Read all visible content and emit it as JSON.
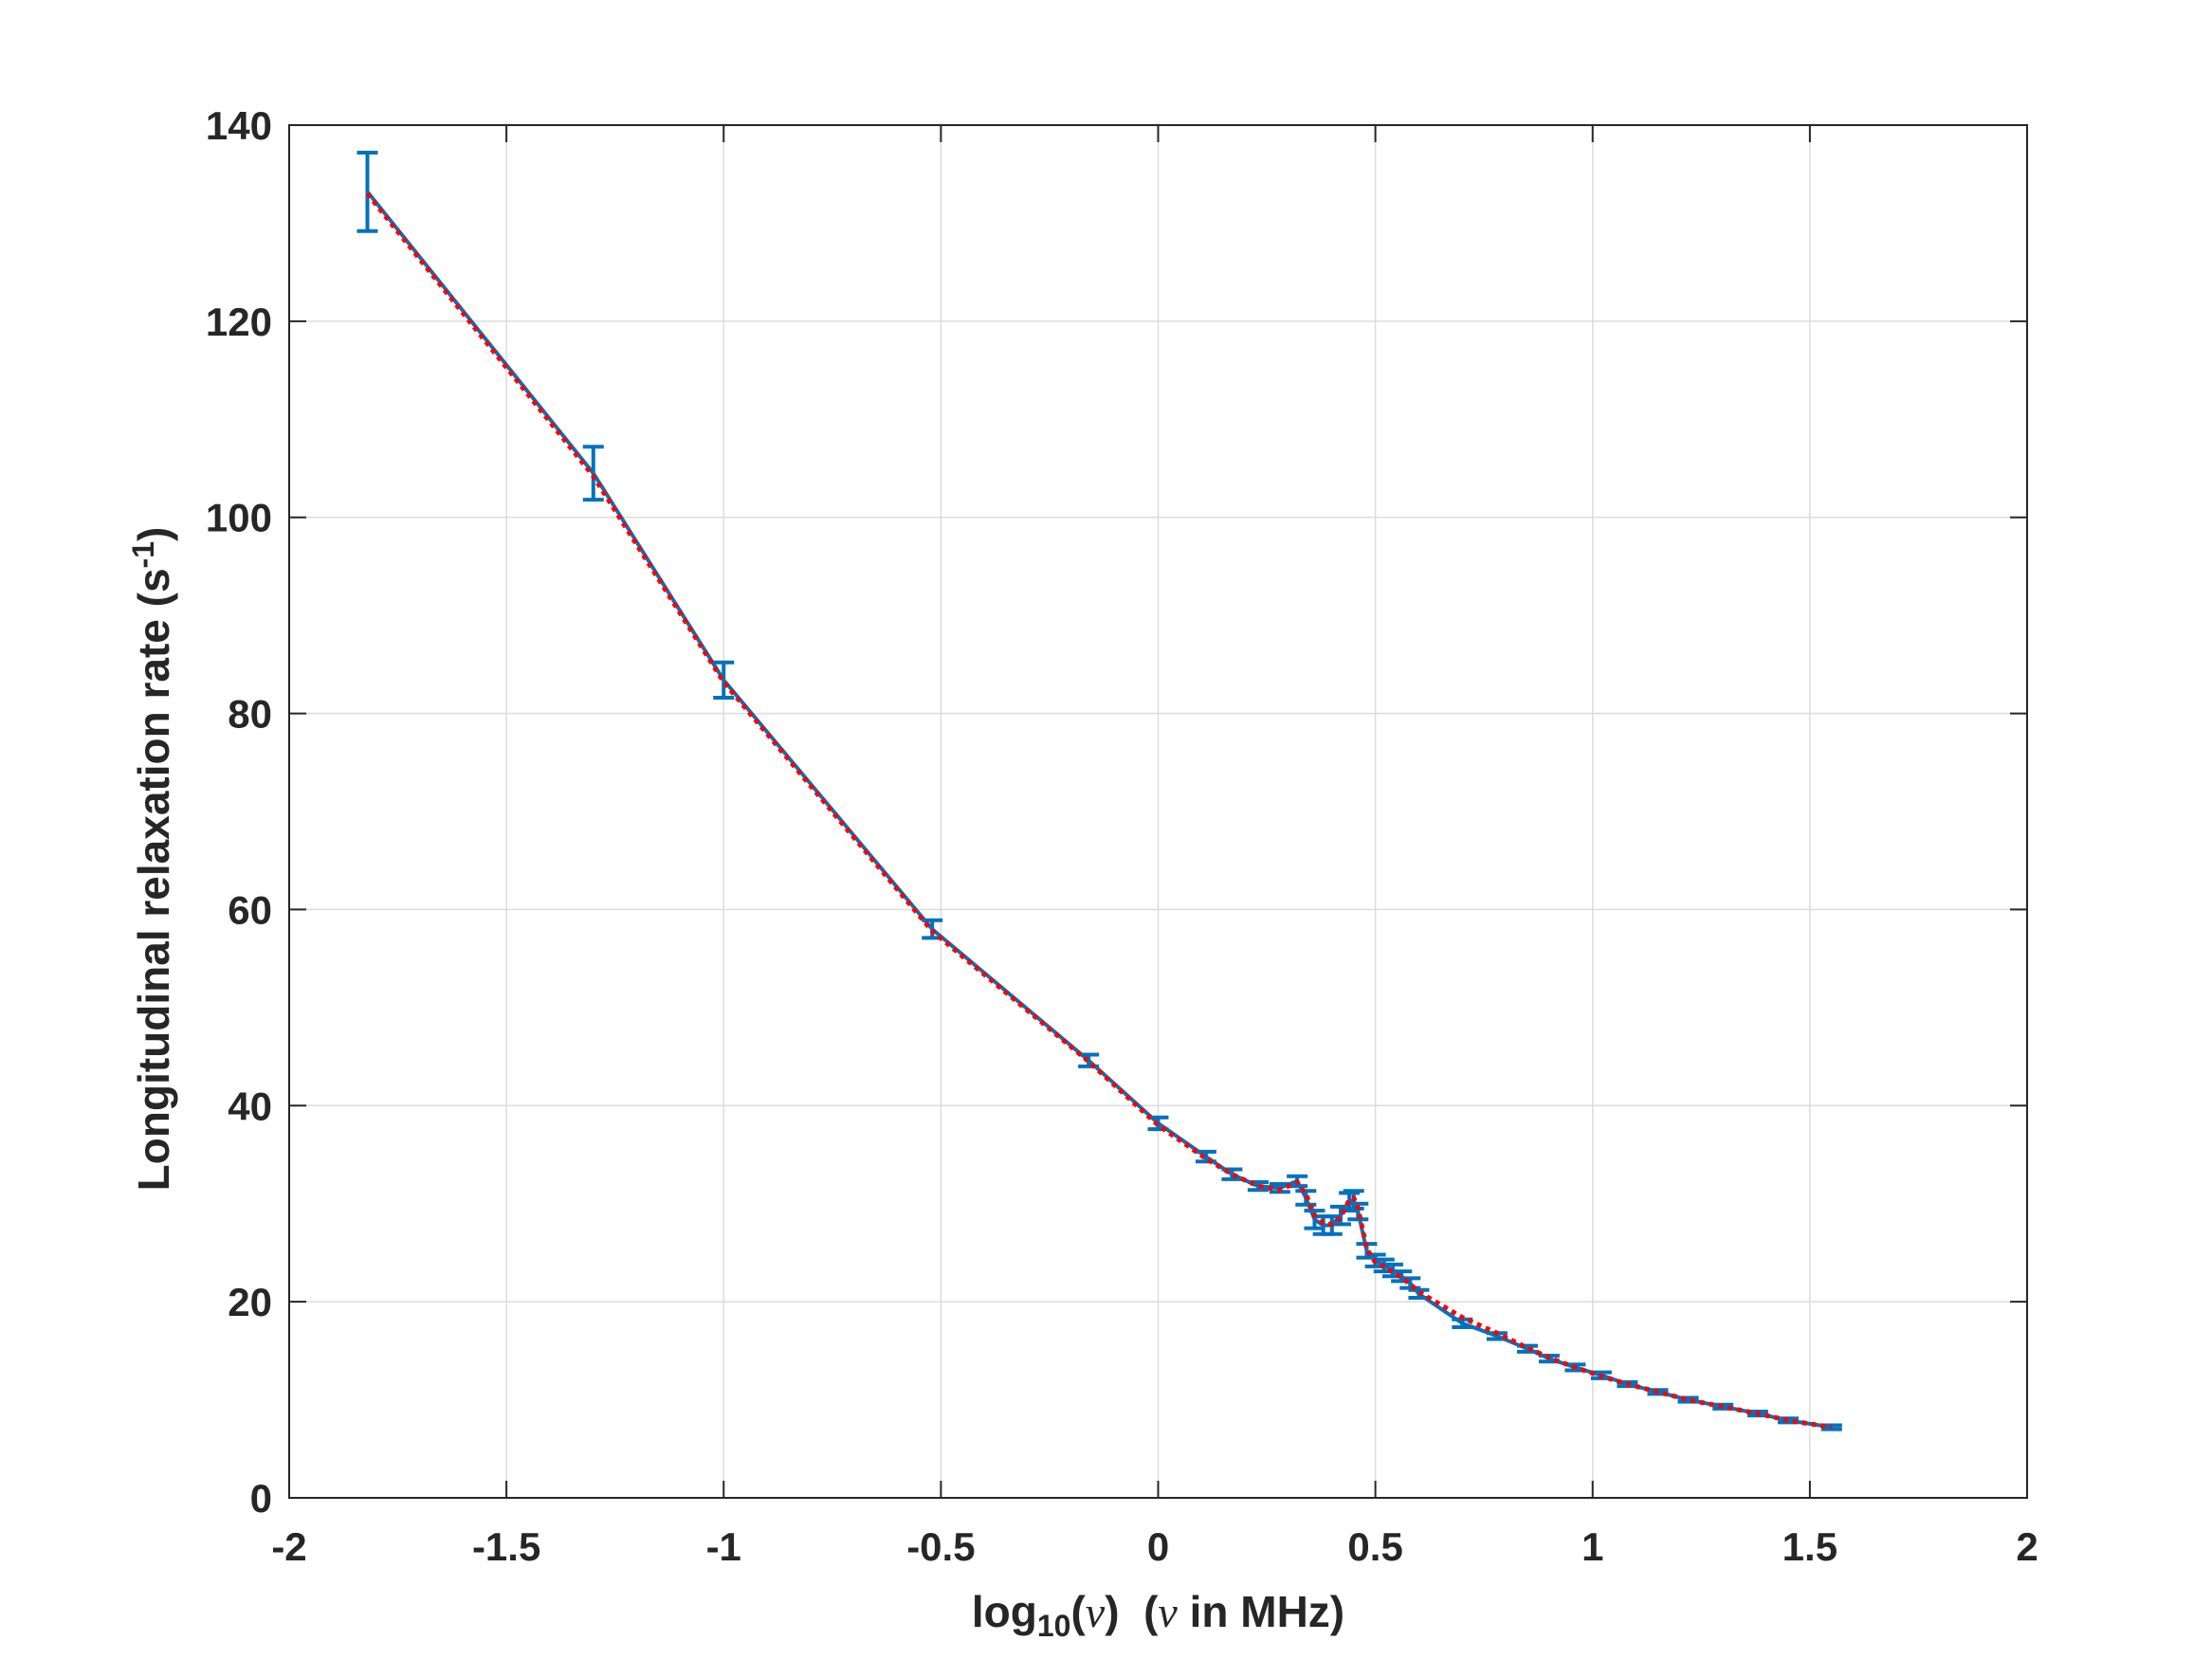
{
  "chart_data": {
    "type": "line",
    "xlabel": {
      "prefix": "log",
      "sub": "10",
      "arg": "ν",
      "paren_open": "(",
      "paren_close": ")",
      "suffix_open": "  (",
      "suffix_nu": "ν",
      "suffix_text": " in MHz)"
    },
    "ylabel": {
      "text": "Longitudinal relaxation rate (s",
      "sup": "-1",
      "close": ")"
    },
    "xlim": [
      -2,
      2
    ],
    "ylim": [
      0,
      140
    ],
    "xticks": [
      -2,
      -1.5,
      -1,
      -0.5,
      0,
      0.5,
      1,
      1.5,
      2
    ],
    "xtick_labels": [
      "-2",
      "-1.5",
      "-1",
      "-0.5",
      "0",
      "0.5",
      "1",
      "1.5",
      "2"
    ],
    "yticks": [
      0,
      20,
      40,
      60,
      80,
      100,
      120,
      140
    ],
    "ytick_labels": [
      "0",
      "20",
      "40",
      "60",
      "80",
      "100",
      "120",
      "140"
    ],
    "grid": true,
    "series": [
      {
        "style": "errorbar-line",
        "color": "#0072BD",
        "x": [
          -1.82,
          -1.3,
          -1.0,
          -0.52,
          -0.16,
          0.0,
          0.11,
          0.17,
          0.23,
          0.28,
          0.32,
          0.34,
          0.36,
          0.38,
          0.4,
          0.42,
          0.44,
          0.45,
          0.46,
          0.48,
          0.5,
          0.52,
          0.54,
          0.56,
          0.58,
          0.6,
          0.7,
          0.78,
          0.85,
          0.9,
          0.96,
          1.02,
          1.08,
          1.15,
          1.22,
          1.3,
          1.38,
          1.45,
          1.55
        ],
        "y": [
          133.2,
          104.5,
          83.4,
          58.0,
          44.6,
          38.2,
          34.8,
          33.0,
          31.8,
          31.6,
          32.3,
          30.6,
          28.4,
          27.8,
          27.8,
          28.8,
          30.2,
          30.4,
          29.2,
          25.2,
          24.2,
          23.7,
          23.2,
          22.6,
          21.9,
          20.8,
          17.8,
          16.5,
          15.2,
          14.2,
          13.3,
          12.5,
          11.6,
          10.8,
          10.0,
          9.3,
          8.6,
          7.9,
          7.2
        ],
        "err": [
          4.0,
          2.7,
          1.8,
          0.9,
          0.6,
          0.6,
          0.5,
          0.5,
          0.4,
          0.4,
          0.5,
          0.7,
          0.9,
          0.9,
          0.9,
          0.9,
          0.9,
          0.9,
          0.8,
          0.7,
          0.6,
          0.6,
          0.6,
          0.5,
          0.5,
          0.4,
          0.4,
          0.3,
          0.3,
          0.3,
          0.3,
          0.3,
          0.2,
          0.2,
          0.2,
          0.2,
          0.2,
          0.2,
          0.2
        ]
      },
      {
        "style": "dotted",
        "color": "#FF0000",
        "x": [
          -1.82,
          -1.3,
          -1.0,
          -0.52,
          -0.16,
          0.0,
          0.11,
          0.17,
          0.23,
          0.28,
          0.32,
          0.34,
          0.36,
          0.38,
          0.4,
          0.42,
          0.44,
          0.45,
          0.46,
          0.48,
          0.5,
          0.52,
          0.54,
          0.56,
          0.58,
          0.6,
          0.7,
          0.78,
          0.85,
          0.9,
          0.96,
          1.02,
          1.08,
          1.15,
          1.22,
          1.3,
          1.38,
          1.45,
          1.55
        ],
        "y": [
          133.0,
          104.2,
          83.2,
          57.8,
          44.5,
          38.0,
          34.6,
          33.0,
          31.8,
          31.4,
          32.2,
          31.0,
          28.8,
          28.0,
          27.9,
          28.6,
          30.4,
          30.6,
          29.6,
          25.4,
          24.0,
          23.6,
          23.0,
          22.5,
          21.8,
          21.0,
          18.4,
          16.8,
          15.3,
          14.3,
          13.3,
          12.4,
          11.6,
          10.8,
          10.0,
          9.3,
          8.6,
          7.9,
          7.2
        ]
      }
    ]
  }
}
